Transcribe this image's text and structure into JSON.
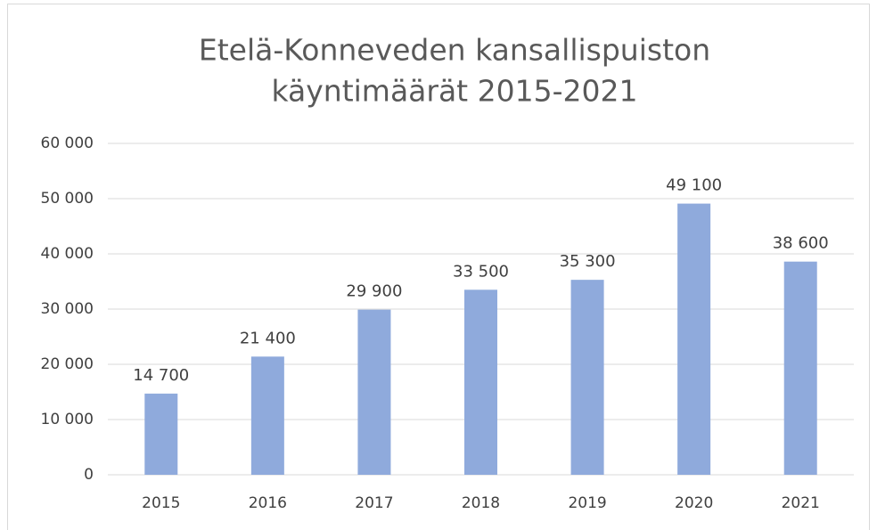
{
  "chart_data": {
    "type": "bar",
    "title": [
      "Etelä-Konneveden kansallispuiston",
      "käyntimäärät 2015-2021"
    ],
    "categories": [
      "2015",
      "2016",
      "2017",
      "2018",
      "2019",
      "2020",
      "2021"
    ],
    "values": [
      14700,
      21400,
      29900,
      33500,
      35300,
      49100,
      38600
    ],
    "value_labels": [
      "14 700",
      "21 400",
      "29 900",
      "33 500",
      "35 300",
      "49 100",
      "38 600"
    ],
    "color": "#8faadc",
    "ylim": [
      0,
      60000
    ],
    "yticks": [
      0,
      {
        "value": 10000,
        "label": "10 000"
      },
      {
        "value": 20000,
        "label": "20 000"
      },
      {
        "value": 30000,
        "label": "30 000"
      },
      {
        "value": 40000,
        "label": "40 000"
      },
      {
        "value": 50000,
        "label": "50 000"
      },
      {
        "value": 60000,
        "label": "60 000"
      }
    ],
    "grid": true
  }
}
